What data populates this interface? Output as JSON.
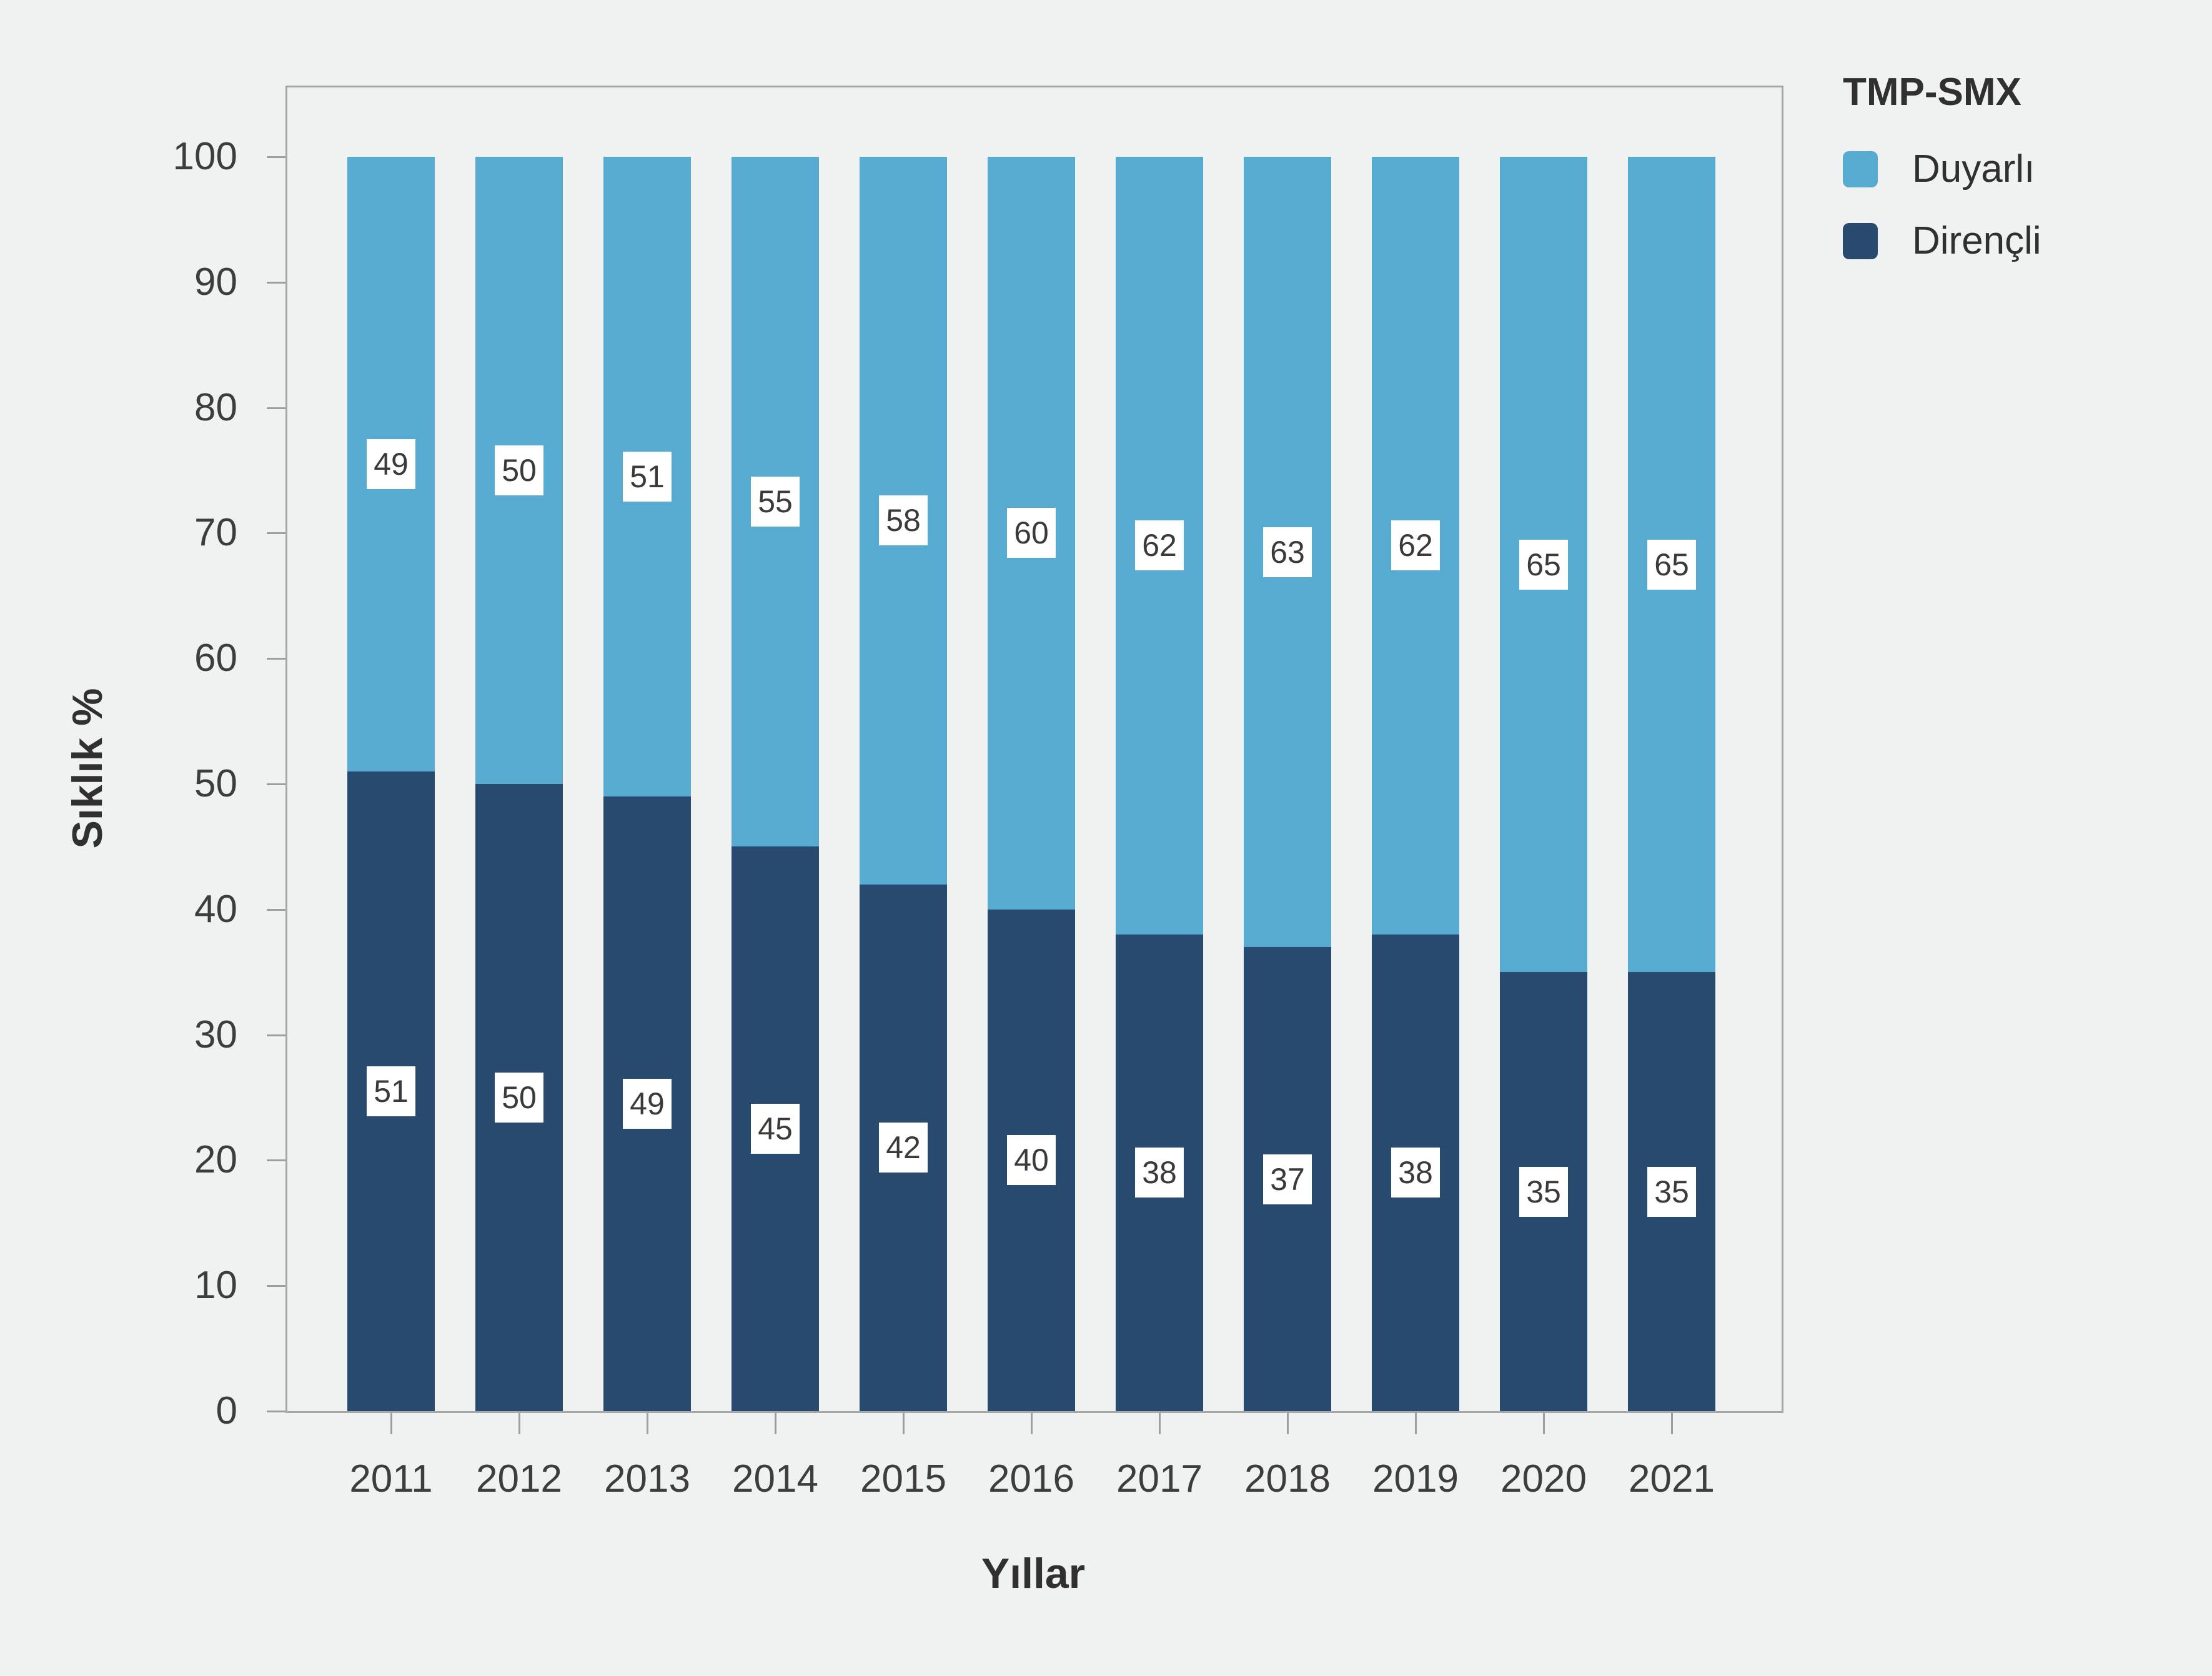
{
  "chart_data": {
    "type": "bar",
    "stacked": true,
    "orientation": "vertical",
    "categories": [
      "2011",
      "2012",
      "2013",
      "2014",
      "2015",
      "2016",
      "2017",
      "2018",
      "2019",
      "2020",
      "2021"
    ],
    "series": [
      {
        "name": "Duyarlı",
        "color": "#57ABD0",
        "values": [
          49,
          50,
          51,
          55,
          58,
          60,
          62,
          63,
          62,
          65,
          65
        ]
      },
      {
        "name": "Dirençli",
        "color": "#274A6E",
        "values": [
          51,
          50,
          49,
          45,
          42,
          40,
          38,
          37,
          38,
          35,
          35
        ]
      }
    ],
    "title": "",
    "xlabel": "Yıllar",
    "ylabel": "Sıklık %",
    "ylim": [
      0,
      100
    ],
    "yticks": [
      0,
      10,
      20,
      30,
      40,
      50,
      60,
      70,
      80,
      90,
      100
    ],
    "grid": false,
    "bar_labels": true,
    "legend_title": "TMP-SMX",
    "legend_position": "top-right"
  },
  "legend": {
    "title": "TMP-SMX",
    "items": [
      {
        "label": "Duyarlı",
        "color": "#57ABD0"
      },
      {
        "label": "Dirençli",
        "color": "#274A6E"
      }
    ]
  },
  "colors": {
    "background": "#F0F1F1",
    "plot_border": "#A6A6A6",
    "tick": "#9E9E9E",
    "tick_text": "#3D3D3D",
    "title_text": "#303030",
    "bar_label_bg": "#FFFFFF",
    "bar_label_text": "#3A3A3A"
  }
}
